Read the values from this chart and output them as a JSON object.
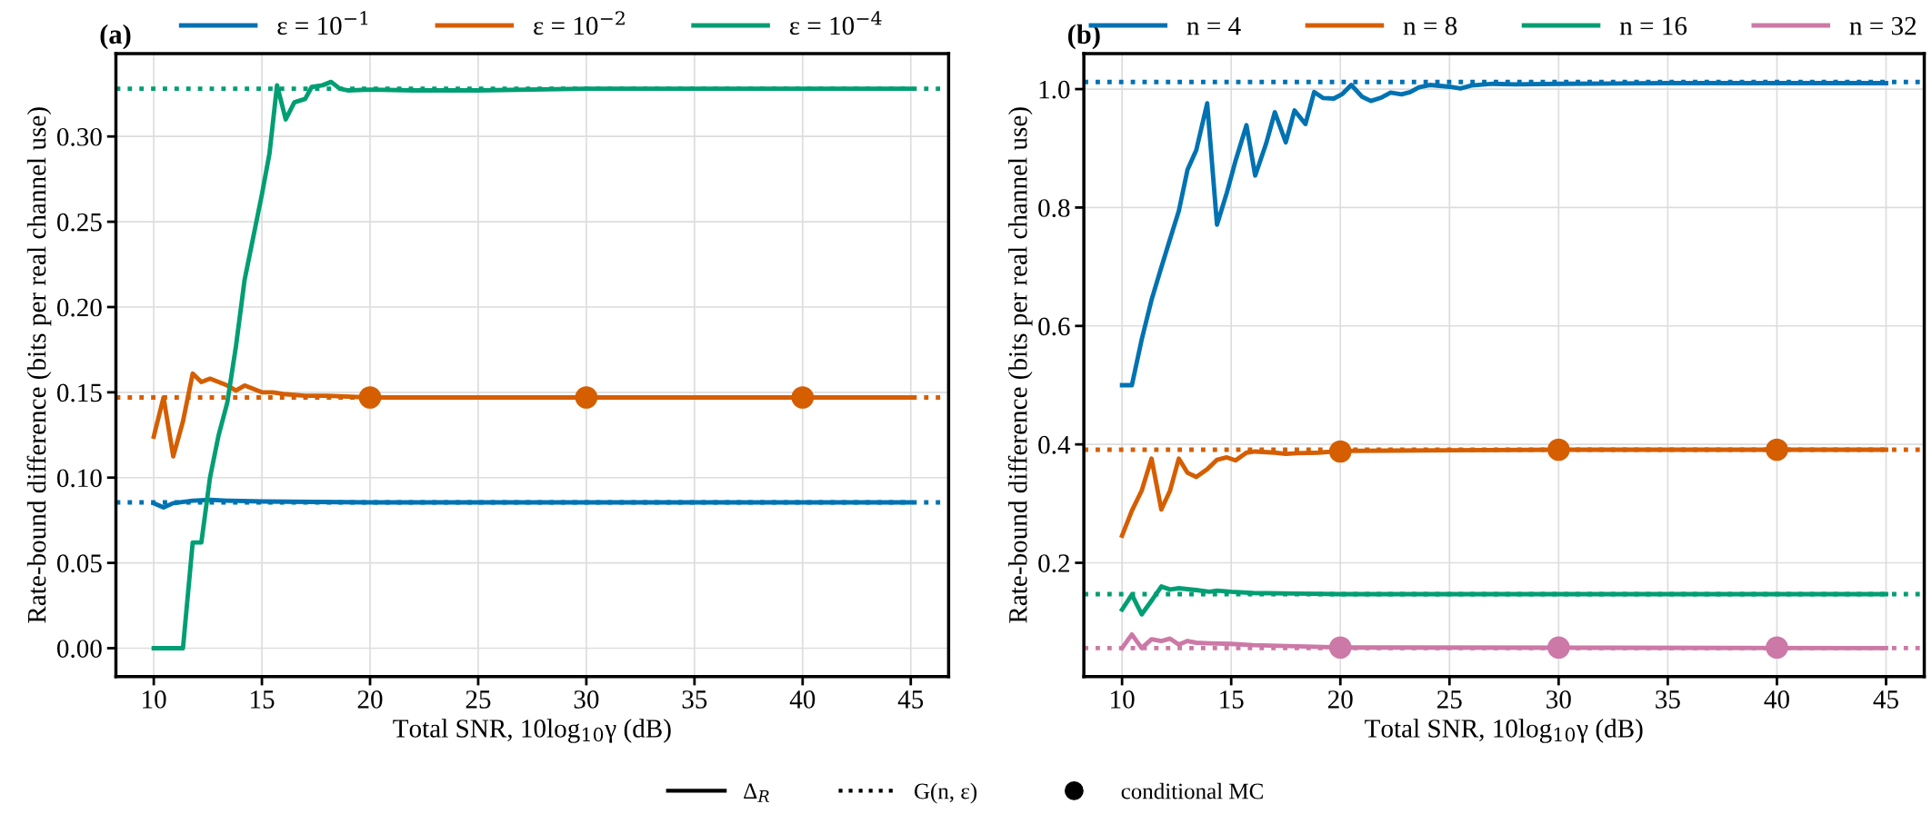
{
  "chart_data": [
    {
      "type": "line",
      "title": "(a)",
      "xlabel": "Total SNR, 10log$_{10}$γ (dB)",
      "ylabel": "Rate-bound difference (bits per real channel use)",
      "xlim": [
        8.25,
        46.75
      ],
      "xticks": [
        10,
        15,
        20,
        25,
        30,
        35,
        40,
        45
      ],
      "ylim": [
        -0.0166,
        0.3486
      ],
      "yticks": [
        {
          "value": 0,
          "label": "0.00"
        },
        {
          "value": 0.05,
          "label": "0.05"
        },
        {
          "value": 0.1,
          "label": "0.10"
        },
        {
          "value": 0.15,
          "label": "0.15"
        },
        {
          "value": 0.2,
          "label": "0.20"
        },
        {
          "value": 0.25,
          "label": "0.25"
        },
        {
          "value": 0.3,
          "label": "0.30"
        }
      ],
      "grid": true,
      "legend": "top",
      "line_style": "solid",
      "series": [
        {
          "name": "ε = 10$^{−1}$",
          "color": "#0072b2",
          "x": [
            10,
            10.45,
            10.9,
            11.8,
            12.6,
            13.4,
            15,
            20,
            30,
            45
          ],
          "values": [
            0.085,
            0.0825,
            0.085,
            0.0865,
            0.087,
            0.0865,
            0.086,
            0.0855,
            0.0855,
            0.0855
          ]
        },
        {
          "name": "ε = 10$^{−2}$",
          "color": "#d55e00",
          "x": [
            10,
            10.45,
            10.9,
            11.35,
            11.8,
            12.2,
            12.6,
            13.0,
            13.4,
            13.8,
            14.2,
            14.6,
            15,
            15.5,
            16,
            17,
            18,
            20,
            30,
            45
          ],
          "values": [
            0.124,
            0.147,
            0.1125,
            0.133,
            0.161,
            0.156,
            0.158,
            0.156,
            0.154,
            0.151,
            0.154,
            0.152,
            0.15,
            0.15,
            0.149,
            0.148,
            0.148,
            0.147,
            0.147,
            0.147
          ]
        },
        {
          "name": "ε = 10$^{−4}$",
          "color": "#009e73",
          "x": [
            10,
            10.45,
            10.9,
            11.35,
            11.8,
            12.2,
            12.6,
            13.0,
            13.4,
            13.8,
            14.2,
            14.6,
            15.0,
            15.35,
            15.7,
            16.1,
            16.5,
            17,
            17.3,
            17.8,
            18.2,
            18.6,
            19,
            20,
            22,
            25,
            30,
            45
          ],
          "values": [
            0,
            0,
            0,
            0,
            0.062,
            0.062,
            0.1,
            0.125,
            0.144,
            0.177,
            0.216,
            0.241,
            0.266,
            0.29,
            0.33,
            0.31,
            0.32,
            0.322,
            0.329,
            0.33,
            0.332,
            0.328,
            0.327,
            0.3275,
            0.327,
            0.327,
            0.328,
            0.328
          ]
        },
        {
          "type": "scatter",
          "marker": "circle",
          "color": "#d55e00",
          "x": [
            20,
            30,
            40
          ],
          "values": [
            0.147,
            0.147,
            0.147
          ]
        }
      ],
      "ref_lines": [
        {
          "axis": "y",
          "value": 0.0855,
          "color": "#0072b2",
          "line_style": "dotted"
        },
        {
          "axis": "y",
          "value": 0.147,
          "color": "#d55e00",
          "line_style": "dotted"
        },
        {
          "axis": "y",
          "value": 0.328,
          "color": "#009e73",
          "line_style": "dotted"
        }
      ]
    },
    {
      "type": "line",
      "title": "(b)",
      "xlabel": "Total SNR, 10log$_{10}$γ (dB)",
      "ylabel": "Rate-bound difference (bits per real channel use)",
      "xlim": [
        8.25,
        46.75
      ],
      "xticks": [
        10,
        15,
        20,
        25,
        30,
        35,
        40,
        45
      ],
      "ylim": [
        0.008,
        1.06
      ],
      "yticks": [
        0.2,
        0.4,
        0.6,
        0.8,
        {
          "value": 1.0,
          "label": "1.0"
        }
      ],
      "grid": true,
      "legend": "top",
      "line_style": "solid",
      "series": [
        {
          "name": "n = 4",
          "color": "#0072b2",
          "x": [
            10,
            10.45,
            10.9,
            11.35,
            11.8,
            12.2,
            12.6,
            13.0,
            13.4,
            13.9,
            14.35,
            14.8,
            15.2,
            15.7,
            16.1,
            16.6,
            17.0,
            17.5,
            17.9,
            18.4,
            18.8,
            19.2,
            19.7,
            20.1,
            20.5,
            21.0,
            21.4,
            21.9,
            22.3,
            22.8,
            23.2,
            23.6,
            24.1,
            25,
            25.5,
            26,
            27,
            28,
            30,
            35,
            45
          ],
          "values": [
            0.5,
            0.5,
            0.577,
            0.644,
            0.699,
            0.747,
            0.794,
            0.864,
            0.897,
            0.976,
            0.771,
            0.825,
            0.879,
            0.939,
            0.854,
            0.908,
            0.961,
            0.91,
            0.964,
            0.941,
            0.995,
            0.985,
            0.984,
            0.992,
            1.007,
            0.987,
            0.98,
            0.986,
            0.994,
            0.991,
            0.995,
            1.003,
            1.007,
            1.004,
            1.001,
            1.006,
            1.009,
            1.008,
            1.009,
            1.01,
            1.01
          ]
        },
        {
          "name": "n = 8",
          "color": "#d55e00",
          "x": [
            10,
            10.45,
            10.9,
            11.35,
            11.8,
            12.2,
            12.6,
            13.0,
            13.4,
            13.9,
            14.35,
            14.8,
            15.2,
            15.7,
            16.1,
            17,
            17.5,
            18,
            19,
            20,
            25,
            30,
            45
          ],
          "values": [
            0.246,
            0.288,
            0.322,
            0.376,
            0.29,
            0.322,
            0.376,
            0.352,
            0.345,
            0.358,
            0.374,
            0.378,
            0.373,
            0.386,
            0.388,
            0.386,
            0.384,
            0.385,
            0.386,
            0.389,
            0.39,
            0.391,
            0.391
          ]
        },
        {
          "name": "n = 16",
          "color": "#009e73",
          "x": [
            10,
            10.45,
            10.9,
            11.35,
            11.8,
            12.2,
            12.6,
            13.4,
            14,
            14.35,
            15,
            16,
            18,
            20,
            45
          ],
          "values": [
            0.121,
            0.146,
            0.113,
            0.136,
            0.16,
            0.155,
            0.157,
            0.154,
            0.151,
            0.153,
            0.151,
            0.149,
            0.148,
            0.147,
            0.147
          ]
        },
        {
          "name": "n = 32",
          "color": "#cc79a7",
          "x": [
            10,
            10.45,
            10.9,
            11.35,
            11.8,
            12.2,
            12.6,
            13.0,
            13.4,
            14,
            15,
            16,
            18,
            20,
            45
          ],
          "values": [
            0.056,
            0.079,
            0.056,
            0.071,
            0.068,
            0.072,
            0.062,
            0.068,
            0.065,
            0.064,
            0.063,
            0.061,
            0.059,
            0.057,
            0.056
          ]
        },
        {
          "type": "scatter",
          "marker": "circle",
          "color": "#d55e00",
          "x": [
            20,
            30,
            40
          ],
          "values": [
            0.388,
            0.391,
            0.391
          ]
        },
        {
          "type": "scatter",
          "marker": "circle",
          "color": "#cc79a7",
          "x": [
            20,
            30,
            40
          ],
          "values": [
            0.057,
            0.057,
            0.057
          ]
        }
      ],
      "ref_lines": [
        {
          "axis": "y",
          "value": 1.012,
          "color": "#0072b2",
          "line_style": "dotted"
        },
        {
          "axis": "y",
          "value": 0.391,
          "color": "#d55e00",
          "line_style": "dotted"
        },
        {
          "axis": "y",
          "value": 0.147,
          "color": "#009e73",
          "line_style": "dotted"
        },
        {
          "axis": "y",
          "value": 0.056,
          "color": "#cc79a7",
          "line_style": "dotted"
        }
      ]
    },
    {
      "type": "other",
      "legend": "bottom",
      "series": [
        {
          "name": "Δ$_{R}$",
          "color": "#000000",
          "line_style": "solid"
        },
        {
          "name": "G(n, ε)",
          "color": "#000000",
          "line_style": "dotted"
        },
        {
          "name": "conditional MC",
          "color": "#000000",
          "marker": "circle"
        }
      ]
    }
  ]
}
